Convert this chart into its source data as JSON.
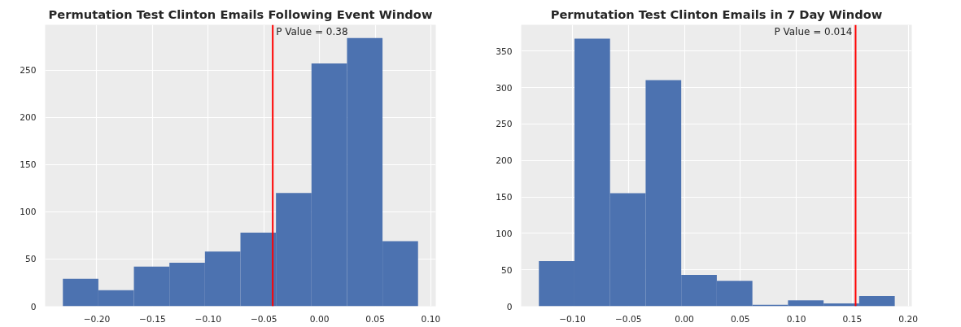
{
  "chart_data": [
    {
      "type": "histogram",
      "title": "Permutation Test Clinton Emails Following Event Window",
      "bins": [
        -0.2305,
        -0.1986,
        -0.1667,
        -0.1348,
        -0.1029,
        -0.071,
        -0.0391,
        -0.0072,
        0.0247,
        0.0566,
        0.0885
      ],
      "values": [
        29,
        17,
        42,
        46,
        58,
        78,
        120,
        257,
        284,
        69
      ],
      "color": "#4c72b0",
      "xlim": [
        -0.2464,
        0.1044
      ],
      "xticks": [
        {
          "value": -0.2,
          "label": "−0.20"
        },
        {
          "value": -0.15,
          "label": "−0.15"
        },
        {
          "value": -0.1,
          "label": "−0.10"
        },
        {
          "value": -0.05,
          "label": "−0.05"
        },
        {
          "value": 0,
          "label": "0.00"
        },
        {
          "value": 0.05,
          "label": "0.05"
        },
        {
          "value": 0.1,
          "label": "0.10"
        }
      ],
      "ylim": [
        0,
        298
      ],
      "yticks": [
        0,
        50,
        100,
        150,
        200,
        250
      ],
      "grid": true,
      "ref_lines": [
        {
          "axis": "x",
          "value": -0.042,
          "color": "#ff0000"
        }
      ],
      "annotations": [
        {
          "text": "P Value = 0.38",
          "x": -0.042,
          "y": 298
        }
      ]
    },
    {
      "type": "histogram",
      "title": "Permutation Test Clinton Emails in 7 Day Window",
      "bins": [
        -0.13,
        -0.0982,
        -0.0664,
        -0.0346,
        -0.0028,
        0.029,
        0.0608,
        0.0926,
        0.1244,
        0.1562,
        0.188
      ],
      "values": [
        62,
        367,
        155,
        310,
        43,
        35,
        2,
        8,
        4,
        14
      ],
      "color": "#4c72b0",
      "xlim": [
        -0.1458,
        0.2032
      ],
      "xticks": [
        {
          "value": -0.1,
          "label": "−0.10"
        },
        {
          "value": -0.05,
          "label": "−0.05"
        },
        {
          "value": 0,
          "label": "0.00"
        },
        {
          "value": 0.05,
          "label": "0.05"
        },
        {
          "value": 0.1,
          "label": "0.10"
        },
        {
          "value": 0.15,
          "label": "0.15"
        },
        {
          "value": 0.2,
          "label": "0.20"
        }
      ],
      "ylim": [
        0,
        386
      ],
      "yticks": [
        0,
        50,
        100,
        150,
        200,
        250,
        300,
        350
      ],
      "grid": true,
      "ref_lines": [
        {
          "axis": "x",
          "value": 0.153,
          "color": "#ff0000"
        }
      ],
      "annotations": [
        {
          "text": "P Value = 0.014",
          "x": 0.153,
          "y": 386
        }
      ]
    }
  ]
}
